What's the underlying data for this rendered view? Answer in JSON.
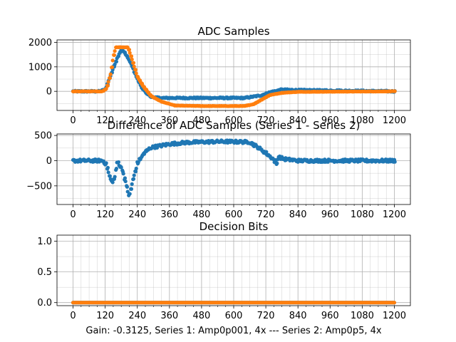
{
  "figure_note": "Gain: -0.3125, Series 1: Amp0p001, 4x --- Series 2: Amp0p5, 4x",
  "colors": {
    "series1": "#1f77b4",
    "series2": "#ff7f0e",
    "grid": "#b0b0b0"
  },
  "chart_data": [
    {
      "id": "adc",
      "type": "scatter",
      "title": "ADC Samples",
      "xlim": [
        -60,
        1260
      ],
      "ylim": [
        -780,
        2100
      ],
      "xticks": [
        0,
        120,
        240,
        360,
        480,
        600,
        720,
        840,
        960,
        1080,
        1200
      ],
      "xticks_minor_step": 30,
      "yticks": [
        0,
        1000,
        2000
      ],
      "yticks_minor": [
        -500,
        500,
        1500
      ],
      "grid": true,
      "series": [
        {
          "name": "Series 1",
          "color": "#1f77b4",
          "points": [
            [
              0,
              0
            ],
            [
              100,
              0
            ],
            [
              120,
              80
            ],
            [
              135,
              500
            ],
            [
              155,
              1100
            ],
            [
              170,
              1500
            ],
            [
              180,
              1700
            ],
            [
              195,
              1550
            ],
            [
              215,
              1150
            ],
            [
              240,
              500
            ],
            [
              260,
              80
            ],
            [
              290,
              -220
            ],
            [
              320,
              -270
            ],
            [
              420,
              -270
            ],
            [
              640,
              -270
            ],
            [
              700,
              -170
            ],
            [
              740,
              -20
            ],
            [
              780,
              70
            ],
            [
              840,
              50
            ],
            [
              1200,
              0
            ]
          ]
        },
        {
          "name": "Series 2",
          "color": "#ff7f0e",
          "points": [
            [
              0,
              0
            ],
            [
              110,
              0
            ],
            [
              125,
              120
            ],
            [
              140,
              700
            ],
            [
              150,
              1400
            ],
            [
              160,
              1800
            ],
            [
              205,
              1800
            ],
            [
              220,
              1300
            ],
            [
              240,
              600
            ],
            [
              262,
              200
            ],
            [
              292,
              -200
            ],
            [
              330,
              -420
            ],
            [
              380,
              -580
            ],
            [
              480,
              -600
            ],
            [
              640,
              -600
            ],
            [
              675,
              -520
            ],
            [
              705,
              -330
            ],
            [
              735,
              -150
            ],
            [
              780,
              -60
            ],
            [
              840,
              -20
            ],
            [
              1200,
              0
            ]
          ]
        }
      ]
    },
    {
      "id": "diff",
      "type": "scatter",
      "title": "Difference of ADC Samples (Series 1 - Series 2)",
      "xlim": [
        -60,
        1260
      ],
      "ylim": [
        -870,
        530
      ],
      "xticks": [
        0,
        120,
        240,
        360,
        480,
        600,
        720,
        840,
        960,
        1080,
        1200
      ],
      "xticks_minor_step": 30,
      "yticks": [
        -500,
        0,
        500
      ],
      "yticks_minor": [
        -750,
        -250,
        250
      ],
      "grid": true,
      "series": [
        {
          "name": "Difference",
          "color": "#1f77b4",
          "points": [
            [
              0,
              0
            ],
            [
              110,
              0
            ],
            [
              125,
              -80
            ],
            [
              135,
              -300
            ],
            [
              145,
              -430
            ],
            [
              155,
              -350
            ],
            [
              165,
              -10
            ],
            [
              175,
              -100
            ],
            [
              185,
              -200
            ],
            [
              200,
              -520
            ],
            [
              210,
              -720
            ],
            [
              220,
              -460
            ],
            [
              240,
              -50
            ],
            [
              265,
              150
            ],
            [
              290,
              260
            ],
            [
              360,
              330
            ],
            [
              420,
              360
            ],
            [
              480,
              370
            ],
            [
              560,
              380
            ],
            [
              660,
              370
            ],
            [
              690,
              260
            ],
            [
              720,
              150
            ],
            [
              745,
              40
            ],
            [
              760,
              -60
            ],
            [
              765,
              80
            ],
            [
              790,
              30
            ],
            [
              840,
              0
            ],
            [
              1200,
              0
            ]
          ]
        }
      ]
    },
    {
      "id": "bits",
      "type": "scatter",
      "title": "Decision Bits",
      "xlim": [
        -60,
        1260
      ],
      "ylim": [
        -0.05,
        1.1
      ],
      "xticks": [
        0,
        120,
        240,
        360,
        480,
        600,
        720,
        840,
        960,
        1080,
        1200
      ],
      "xticks_minor_step": 30,
      "yticks": [
        0.0,
        0.5,
        1.0
      ],
      "yticks_minor": [
        0.25,
        0.75
      ],
      "grid": true,
      "series": [
        {
          "name": "Series 1",
          "color": "#1f77b4",
          "points": [
            [
              0,
              0
            ],
            [
              1200,
              0
            ]
          ]
        },
        {
          "name": "Series 2",
          "color": "#ff7f0e",
          "points": [
            [
              0,
              0
            ],
            [
              1200,
              0
            ]
          ]
        }
      ]
    }
  ]
}
